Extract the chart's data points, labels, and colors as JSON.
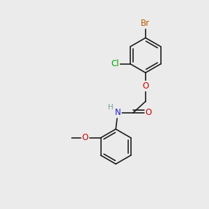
{
  "background_color": "#ebebeb",
  "bond_color": "#1a1a1a",
  "atom_colors": {
    "Br": "#b85800",
    "Cl": "#00aa00",
    "O": "#cc0000",
    "N": "#2020cc",
    "H": "#7a9a9a",
    "C": "#1a1a1a"
  },
  "bond_width": 1.2,
  "font_size": 9,
  "figsize": [
    3.0,
    3.0
  ],
  "dpi": 100
}
